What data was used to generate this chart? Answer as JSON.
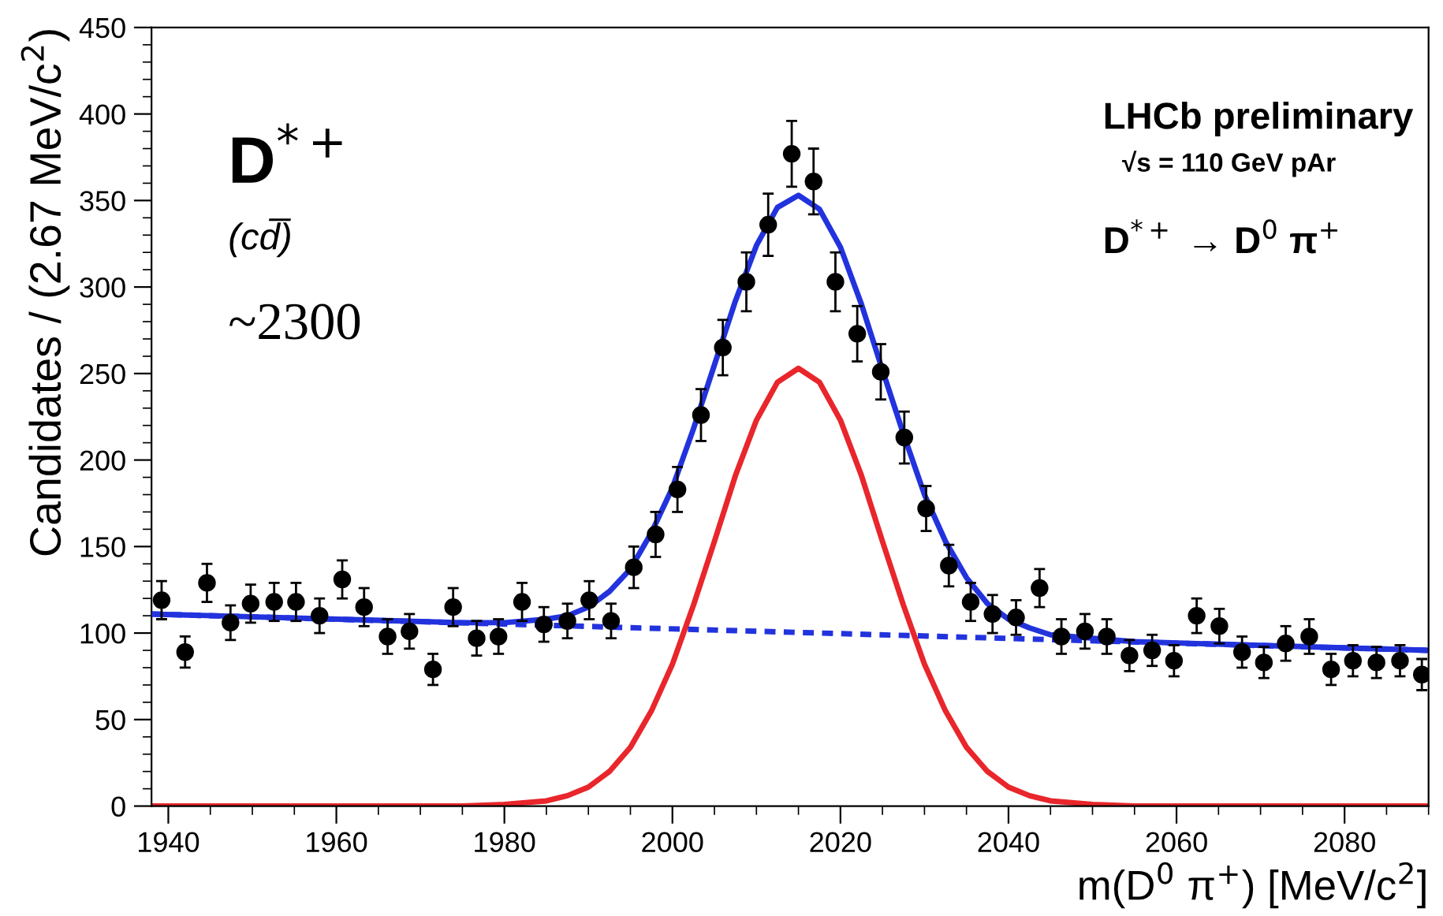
{
  "chart_data": {
    "type": "scatter",
    "xlabel": "m(D$^{0}$ π$^{+}$) [MeV/c$^{2}$]",
    "ylabel": "Candidates / (2.67 MeV/c$^{2}$)",
    "annotations": [
      "D$^{*+}$",
      "(cd̅)",
      "~2300",
      "LHCb preliminary",
      "√s = 110 GeV pAr",
      "D$^{*+}$ → D$^{0}$ π$^{+}$"
    ],
    "xlim": [
      1938,
      2090
    ],
    "ylim": [
      0,
      450
    ],
    "xticks": [
      1940,
      1960,
      1980,
      2000,
      2020,
      2040,
      2060,
      2080
    ],
    "yticks": [
      0,
      50,
      100,
      150,
      200,
      250,
      300,
      350,
      400,
      450
    ],
    "grid": false,
    "legend": false,
    "series": [
      {
        "type": "line",
        "line_style": "dashed",
        "color": "#2233dd",
        "x": [
          1938,
          2090
        ],
        "values": [
          111,
          90
        ]
      },
      {
        "type": "line",
        "line_style": "solid",
        "color": "#e8262b",
        "x": [
          1938,
          1975,
          1980,
          1985,
          1987.5,
          1990,
          1992.5,
          1995,
          1997.5,
          2000,
          2002.5,
          2005,
          2007.5,
          2010,
          2012.5,
          2015,
          2017.5,
          2020,
          2022.5,
          2025,
          2027.5,
          2030,
          2032.5,
          2035,
          2037.5,
          2040,
          2042.5,
          2045,
          2050,
          2055,
          2090
        ],
        "values": [
          0,
          0,
          1,
          3,
          6,
          11,
          20,
          34,
          55,
          82,
          116,
          153,
          191,
          223,
          245,
          253,
          245,
          223,
          191,
          153,
          116,
          82,
          55,
          34,
          20,
          11,
          6,
          3,
          1,
          0,
          0
        ]
      },
      {
        "type": "line",
        "line_style": "solid",
        "color": "#2233dd",
        "x": [
          1938,
          1975,
          1980,
          1985,
          1987.5,
          1990,
          1992.5,
          1995,
          1997.5,
          2000,
          2002.5,
          2005,
          2007.5,
          2010,
          2012.5,
          2015,
          2017.5,
          2020,
          2022.5,
          2025,
          2027.5,
          2030,
          2032.5,
          2035,
          2037.5,
          2040,
          2042.5,
          2045,
          2050,
          2055,
          2090
        ],
        "values": [
          111,
          106,
          106,
          108,
          110,
          115,
          124,
          137,
          158,
          184,
          218,
          255,
          292,
          324,
          346,
          353,
          345,
          323,
          290,
          252,
          215,
          180,
          153,
          132,
          117,
          108,
          103,
          99,
          97,
          95,
          90
        ]
      },
      {
        "type": "scatter",
        "marker": "circle",
        "color": "#000000",
        "x": [
          1939.2,
          1942.0,
          1944.6,
          1947.4,
          1949.8,
          1952.6,
          1955.2,
          1958.0,
          1960.7,
          1963.3,
          1966.1,
          1968.7,
          1971.5,
          1973.9,
          1976.7,
          1979.3,
          1982.1,
          1984.7,
          1987.5,
          1990.1,
          1992.7,
          1995.4,
          1998.0,
          2000.6,
          2003.4,
          2006.0,
          2008.8,
          2011.4,
          2014.2,
          2016.8,
          2019.4,
          2022.0,
          2024.8,
          2027.6,
          2030.2,
          2032.9,
          2035.5,
          2038.1,
          2040.9,
          2043.7,
          2046.3,
          2049.1,
          2051.7,
          2054.4,
          2057.1,
          2059.7,
          2062.4,
          2065.1,
          2067.8,
          2070.4,
          2073.0,
          2075.8,
          2078.4,
          2081.0,
          2083.8,
          2086.6,
          2089.2
        ],
        "values": [
          119,
          89,
          129,
          106,
          117,
          118,
          118,
          110,
          131,
          115,
          98,
          101,
          79,
          115,
          97,
          98,
          118,
          105,
          107,
          119,
          107,
          138,
          157,
          183,
          226,
          265,
          303,
          336,
          377,
          361,
          303,
          273,
          251,
          213,
          172,
          139,
          118,
          111,
          109,
          126,
          98,
          101,
          98,
          87,
          90,
          84,
          110,
          104,
          89,
          83,
          94,
          98,
          79,
          84,
          83,
          84,
          76
        ],
        "errors": [
          11,
          9,
          11,
          10,
          11,
          11,
          11,
          10,
          11,
          11,
          10,
          10,
          9,
          11,
          10,
          10,
          11,
          10,
          10,
          11,
          10,
          12,
          13,
          13,
          15,
          16,
          17,
          18,
          19,
          19,
          17,
          16,
          16,
          15,
          13,
          12,
          11,
          11,
          10,
          11,
          10,
          10,
          10,
          9,
          9,
          9,
          10,
          10,
          9,
          9,
          10,
          10,
          9,
          9,
          9,
          9,
          9
        ]
      }
    ]
  }
}
